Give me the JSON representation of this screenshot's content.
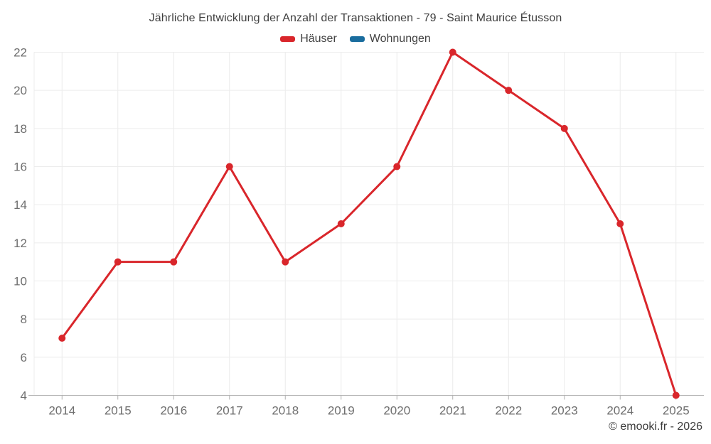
{
  "chart_data": {
    "type": "line",
    "title": "Jährliche Entwicklung der Anzahl der Transaktionen - 79 - Saint Maurice Étusson",
    "categories": [
      "2014",
      "2015",
      "2016",
      "2017",
      "2018",
      "2019",
      "2020",
      "2021",
      "2022",
      "2023",
      "2024",
      "2025"
    ],
    "series": [
      {
        "name": "Häuser",
        "color": "#d9262b",
        "values": [
          7,
          11,
          11,
          16,
          11,
          13,
          16,
          22,
          20,
          18,
          13,
          4
        ]
      },
      {
        "name": "Wohnungen",
        "color": "#1a6d9e",
        "values": []
      }
    ],
    "ylim": [
      4,
      22
    ],
    "ytick_step": 2,
    "yticks": [
      4,
      6,
      8,
      10,
      12,
      14,
      16,
      18,
      20,
      22
    ],
    "grid": true,
    "legend_position": "top",
    "colors": {
      "grid": "#ececec",
      "axis_line": "#b0b0b0",
      "axis_label": "#6f6f6f",
      "title_text": "#3f3f3f"
    }
  },
  "footer": {
    "copyright": "© emooki.fr - 2026"
  }
}
